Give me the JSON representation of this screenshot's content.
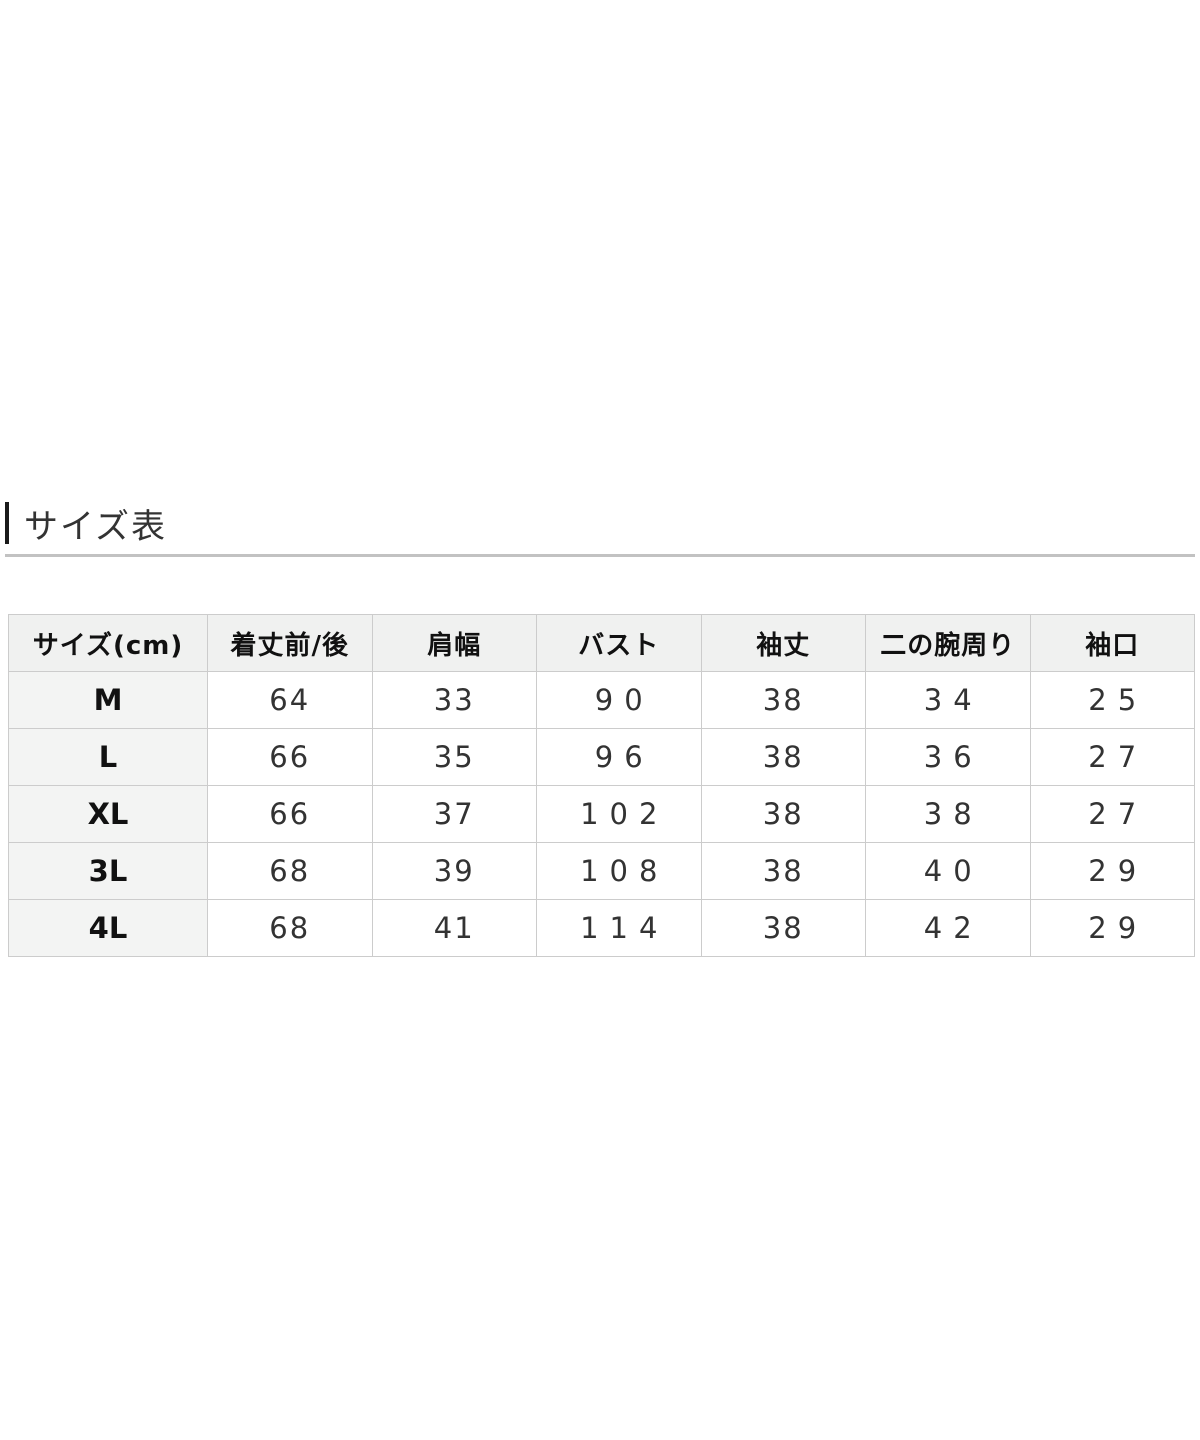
{
  "section": {
    "heading": "サイズ表"
  },
  "size_table": {
    "columns": [
      "サイズ(cm)",
      "着丈前/後",
      "肩幅",
      "バスト",
      "袖丈",
      "二の腕周り",
      "袖口"
    ],
    "spaced_value_columns": [
      2,
      4,
      5
    ],
    "rows": [
      {
        "size": "M",
        "values": [
          "64",
          "33",
          "90",
          "38",
          "34",
          "25"
        ]
      },
      {
        "size": "L",
        "values": [
          "66",
          "35",
          "96",
          "38",
          "36",
          "27"
        ]
      },
      {
        "size": "XL",
        "values": [
          "66",
          "37",
          "102",
          "38",
          "38",
          "27"
        ]
      },
      {
        "size": "3L",
        "values": [
          "68",
          "39",
          "108",
          "38",
          "40",
          "29"
        ]
      },
      {
        "size": "4L",
        "values": [
          "68",
          "41",
          "114",
          "38",
          "42",
          "29"
        ]
      }
    ],
    "colors": {
      "accent_bar": "#1a1a1a",
      "divider": "#c2c2c2",
      "header_bg": "#f0f1f0",
      "label_column_bg": "#f3f4f3",
      "cell_bg": "#ffffff",
      "border": "#cccccc",
      "heading_text": "#333333",
      "header_text": "#111111",
      "value_text": "#333333"
    }
  }
}
